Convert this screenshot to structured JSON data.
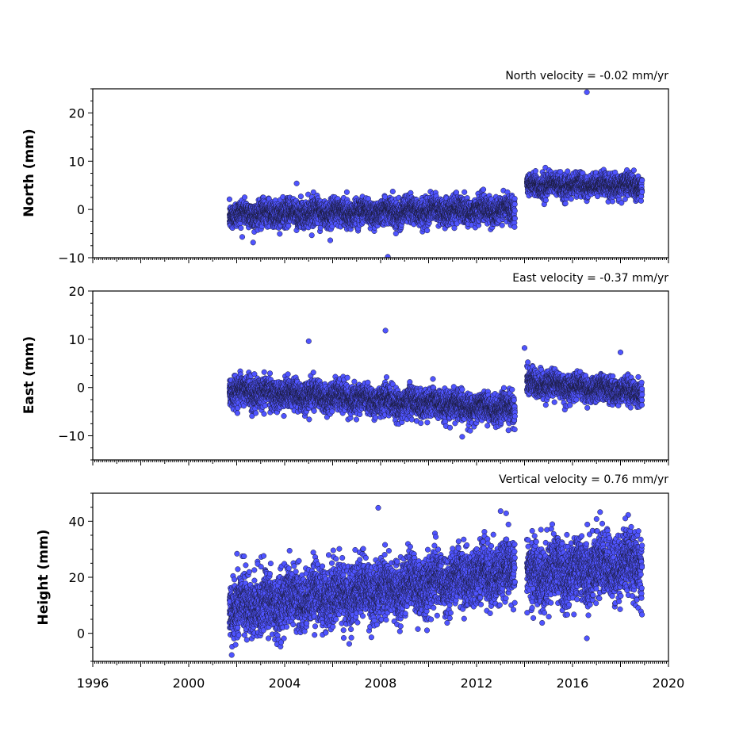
{
  "chart_data": [
    {
      "type": "scatter",
      "panel": "north",
      "title": "North velocity = -0.02 mm/yr",
      "ylabel": "North (mm)",
      "xlim": [
        1996,
        2020
      ],
      "ylim": [
        -10,
        25
      ],
      "yticks": [
        -10,
        0,
        10,
        20
      ],
      "segments": [
        {
          "x_start": 2001.7,
          "x_end": 2013.6,
          "mean_start": -1.0,
          "mean_end": 0.0,
          "spread": 1.3
        },
        {
          "x_start": 2014.1,
          "x_end": 2018.9,
          "mean_start": 5.0,
          "mean_end": 5.0,
          "spread": 1.1
        }
      ],
      "outliers": [
        {
          "x": 2016.6,
          "y": 24.3
        },
        {
          "x": 2008.3,
          "y": -9.8
        },
        {
          "x": 2005.9,
          "y": -6.4
        },
        {
          "x": 2004.5,
          "y": 5.4
        }
      ]
    },
    {
      "type": "scatter",
      "panel": "east",
      "title": "East velocity = -0.37 mm/yr",
      "ylabel": "East (mm)",
      "xlim": [
        1996,
        2020
      ],
      "ylim": [
        -15,
        20
      ],
      "yticks": [
        -10,
        0,
        10,
        20
      ],
      "segments": [
        {
          "x_start": 2001.7,
          "x_end": 2013.6,
          "mean_start": -0.5,
          "mean_end": -4.5,
          "spread": 1.4
        },
        {
          "x_start": 2014.1,
          "x_end": 2018.9,
          "mean_start": 1.0,
          "mean_end": -1.0,
          "spread": 1.3
        }
      ],
      "outliers": [
        {
          "x": 2008.2,
          "y": 11.8
        },
        {
          "x": 2005.0,
          "y": 9.6
        },
        {
          "x": 2011.4,
          "y": -10.2
        },
        {
          "x": 2014.0,
          "y": 8.2
        },
        {
          "x": 2018.0,
          "y": 7.3
        }
      ]
    },
    {
      "type": "scatter",
      "panel": "height",
      "title": "Vertical velocity = 0.76 mm/yr",
      "ylabel": "Height (mm)",
      "xlim": [
        1996,
        2020
      ],
      "ylim": [
        -10,
        50
      ],
      "yticks": [
        0,
        20,
        40
      ],
      "segments": [
        {
          "x_start": 2001.7,
          "x_end": 2013.6,
          "mean_start": 9.0,
          "mean_end": 22.0,
          "spread": 5.0
        },
        {
          "x_start": 2014.1,
          "x_end": 2018.9,
          "mean_start": 21.0,
          "mean_end": 25.0,
          "spread": 5.5
        }
      ],
      "outliers": [
        {
          "x": 2007.9,
          "y": 44.8
        },
        {
          "x": 2013.0,
          "y": 43.6
        },
        {
          "x": 2016.6,
          "y": -1.8
        },
        {
          "x": 2018.2,
          "y": 41.0
        },
        {
          "x": 2017.0,
          "y": 40.8
        }
      ]
    }
  ],
  "x_axis": {
    "tick_labels": [
      "1996",
      "2000",
      "2004",
      "2008",
      "2012",
      "2016",
      "2020"
    ],
    "tick_values": [
      1996,
      2000,
      2004,
      2008,
      2012,
      2016,
      2020
    ],
    "major_ticks_every_years": 2,
    "minor_ticks_per_year": 12
  },
  "colors": {
    "marker_fill": "#4f54ff",
    "marker_edge": "#1a1a3a"
  }
}
